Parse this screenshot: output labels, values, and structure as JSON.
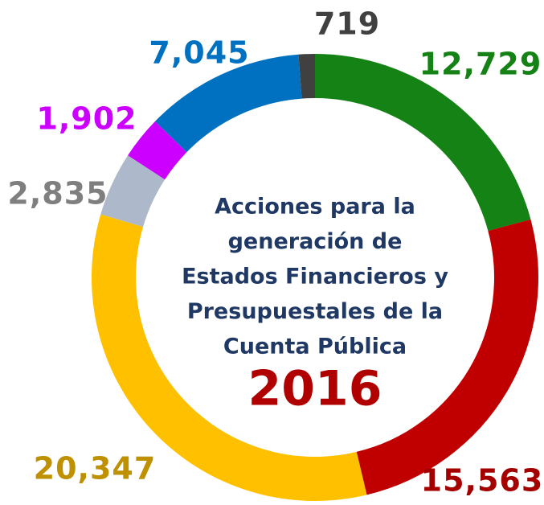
{
  "chart_data": {
    "type": "donut",
    "title": [
      "Acciones para la",
      "generación de",
      "Estados Financieros y",
      "Presupuestales de la",
      "Cuenta Pública"
    ],
    "subtitle": "2016",
    "values": [
      12729,
      15563,
      20347,
      2835,
      1902,
      7045,
      719
    ],
    "value_labels": [
      "12,729",
      "15,563",
      "20,347",
      "2,835",
      "1,902",
      "7,045",
      "719"
    ],
    "colors": [
      "#148214",
      "#c00000",
      "#ffc000",
      "#adb9ca",
      "#cc00ff",
      "#0070c0",
      "#404040"
    ],
    "label_colors": [
      "#148214",
      "#a50000",
      "#bf9000",
      "#7f7f7f",
      "#cc00ff",
      "#0070c0",
      "#404040"
    ],
    "title_color": "#1f3864",
    "subtitle_color": "#b00000"
  }
}
